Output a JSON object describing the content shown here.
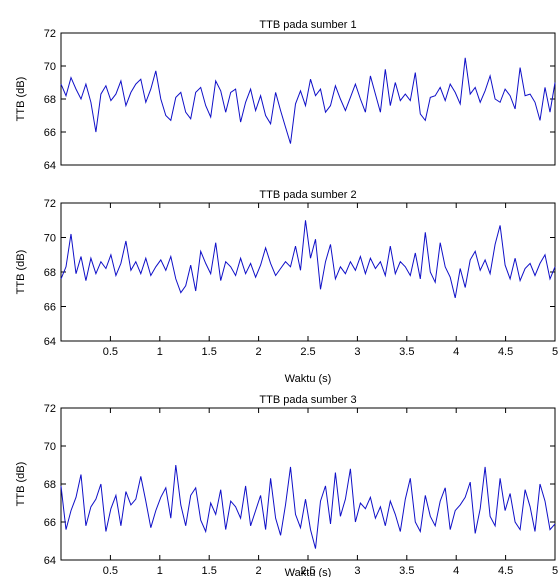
{
  "chart_data": [
    {
      "type": "line",
      "title": "TTB pada sumber 1",
      "ylabel": "TTB (dB)",
      "xlabel": "",
      "xlim": [
        0,
        5
      ],
      "ylim": [
        64,
        72
      ],
      "yticks": [
        "64",
        "66",
        "68",
        "70",
        "72"
      ],
      "xticks": [],
      "grid": false,
      "series": [
        {
          "color": "#1010c8",
          "x_start": 0,
          "x_end": 5,
          "y": [
            68.9,
            68.2,
            69.3,
            68.6,
            68.0,
            68.9,
            67.8,
            66.0,
            68.3,
            68.8,
            67.9,
            68.3,
            69.1,
            67.6,
            68.4,
            68.9,
            69.2,
            67.8,
            68.6,
            69.7,
            68.0,
            67.0,
            66.7,
            68.1,
            68.4,
            67.2,
            66.8,
            68.4,
            68.7,
            67.6,
            66.9,
            69.1,
            68.5,
            67.2,
            68.4,
            68.6,
            66.6,
            67.8,
            68.6,
            67.3,
            68.2,
            67.0,
            66.5,
            68.4,
            67.3,
            66.3,
            65.3,
            67.7,
            68.5,
            67.6,
            69.2,
            68.2,
            68.6,
            67.2,
            67.6,
            68.8,
            68.0,
            67.3,
            68.1,
            68.9,
            68.0,
            67.2,
            69.4,
            68.3,
            67.2,
            69.8,
            67.6,
            69.0,
            67.9,
            68.3,
            67.9,
            69.6,
            67.1,
            66.7,
            68.1,
            68.2,
            68.7,
            67.9,
            68.9,
            68.4,
            67.7,
            70.5,
            68.3,
            68.7,
            67.8,
            68.5,
            69.4,
            68.0,
            67.8,
            68.6,
            68.2,
            67.4,
            69.9,
            68.2,
            68.3,
            67.8,
            66.7,
            68.7,
            67.2,
            69.0
          ]
        }
      ]
    },
    {
      "type": "line",
      "title": "TTB pada sumber 2",
      "ylabel": "TTB (dB)",
      "xlabel": "Waktu (s)",
      "xlim": [
        0,
        5
      ],
      "ylim": [
        64,
        72
      ],
      "yticks": [
        "64",
        "66",
        "68",
        "70",
        "72"
      ],
      "xticks": [
        "0.5",
        "1",
        "1.5",
        "2",
        "2.5",
        "3",
        "3.5",
        "4",
        "4.5",
        "5"
      ],
      "grid": false,
      "series": [
        {
          "color": "#1010c8",
          "x_start": 0,
          "x_end": 5,
          "y": [
            67.6,
            68.3,
            70.2,
            67.9,
            68.9,
            67.5,
            68.8,
            67.9,
            68.6,
            68.2,
            69.0,
            67.8,
            68.5,
            69.8,
            68.1,
            68.6,
            67.9,
            68.8,
            67.8,
            68.3,
            68.7,
            68.1,
            68.9,
            67.6,
            66.8,
            67.2,
            68.4,
            66.9,
            69.2,
            68.5,
            67.9,
            69.7,
            67.5,
            68.6,
            68.3,
            67.8,
            68.8,
            67.9,
            68.5,
            67.7,
            68.4,
            69.4,
            68.5,
            67.8,
            68.2,
            68.6,
            68.3,
            69.5,
            68.1,
            71.0,
            68.8,
            69.9,
            67.0,
            68.6,
            69.6,
            67.6,
            68.3,
            67.9,
            68.6,
            68.1,
            68.9,
            67.9,
            68.8,
            68.2,
            68.6,
            67.8,
            69.5,
            67.9,
            68.6,
            68.3,
            67.8,
            69.1,
            67.6,
            70.3,
            68.0,
            67.4,
            69.7,
            68.3,
            67.7,
            66.5,
            68.2,
            67.1,
            68.7,
            69.2,
            68.1,
            68.7,
            67.9,
            69.6,
            70.7,
            68.4,
            67.6,
            68.8,
            67.5,
            68.2,
            68.5,
            67.8,
            68.5,
            69.0,
            67.6,
            68.3
          ]
        }
      ]
    },
    {
      "type": "line",
      "title": "TTB pada sumber 3",
      "ylabel": "TTB (dB)",
      "xlabel": "Waktu (s)",
      "xlim": [
        0,
        5
      ],
      "ylim": [
        64,
        72
      ],
      "yticks": [
        "64",
        "66",
        "68",
        "70",
        "72"
      ],
      "xticks": [
        "0.5",
        "1",
        "1.5",
        "2",
        "2.5",
        "3",
        "3.5",
        "4",
        "4.5",
        "5"
      ],
      "grid": false,
      "series": [
        {
          "color": "#1010c8",
          "x_start": 0,
          "x_end": 5,
          "y": [
            67.9,
            65.6,
            66.6,
            67.3,
            68.5,
            65.8,
            66.8,
            67.2,
            68.0,
            65.5,
            66.7,
            67.4,
            65.8,
            67.6,
            66.9,
            67.2,
            68.4,
            67.1,
            65.7,
            66.6,
            67.3,
            67.8,
            66.2,
            69.0,
            66.9,
            65.8,
            67.4,
            67.8,
            66.1,
            65.5,
            67.0,
            66.4,
            67.7,
            65.6,
            67.1,
            66.8,
            66.2,
            67.9,
            65.8,
            66.6,
            67.4,
            65.6,
            68.3,
            66.2,
            65.3,
            66.9,
            68.9,
            66.4,
            65.7,
            67.2,
            65.6,
            64.6,
            67.1,
            67.9,
            65.9,
            68.6,
            66.3,
            67.2,
            68.8,
            66.0,
            67.0,
            66.7,
            67.3,
            66.2,
            66.8,
            65.8,
            67.1,
            66.4,
            65.5,
            67.2,
            68.3,
            66.0,
            65.5,
            67.4,
            66.3,
            65.8,
            67.1,
            67.8,
            65.6,
            66.6,
            66.9,
            67.3,
            68.1,
            65.4,
            66.7,
            68.9,
            66.3,
            65.8,
            68.3,
            66.6,
            67.5,
            66.0,
            65.6,
            67.7,
            66.8,
            65.5,
            68.0,
            67.1,
            65.6,
            65.9
          ]
        }
      ]
    }
  ]
}
